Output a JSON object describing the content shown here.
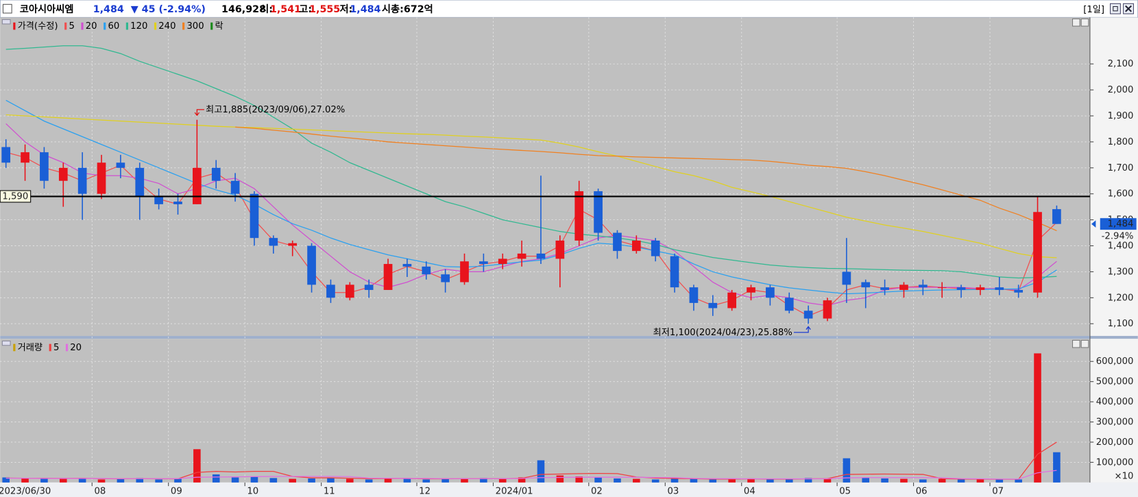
{
  "header": {
    "name": "코아시아씨엠",
    "price": "1,484",
    "change": "▼ 45 (-2.94%)",
    "volume": "146,928",
    "open_label": "시:",
    "open_value": "1,541",
    "high_label": "고:",
    "high_value": "1,555",
    "low_label": "저:",
    "low_value": "1,484",
    "market_cap": "시총:672억",
    "period": "[1일]"
  },
  "chart_data": [
    {
      "type": "candlestick",
      "name": "가격(수정)",
      "up_color": "#e8141c",
      "down_color": "#1a5fd6",
      "categories": [
        "2023/06/30",
        null,
        null,
        null,
        null,
        "08",
        null,
        null,
        null,
        "09",
        null,
        null,
        null,
        "10",
        null,
        null,
        null,
        "11",
        null,
        null,
        null,
        null,
        "12",
        null,
        null,
        null,
        "2024/01",
        null,
        null,
        null,
        null,
        "02",
        null,
        null,
        null,
        "03",
        null,
        null,
        null,
        "04",
        null,
        null,
        null,
        null,
        "05",
        null,
        null,
        null,
        "06",
        null,
        null,
        null,
        "07",
        null,
        null,
        null
      ],
      "open": [
        1780,
        1720,
        1760,
        1650,
        1700,
        1600,
        1720,
        1700,
        1590,
        1570,
        1560,
        1700,
        1650,
        1600,
        1430,
        1400,
        1400,
        1250,
        1200,
        1250,
        1230,
        1330,
        1320,
        1290,
        1260,
        1340,
        1330,
        1350,
        1370,
        1350,
        1420,
        1610,
        1450,
        1380,
        1420,
        1360,
        1240,
        1180,
        1160,
        1220,
        1240,
        1200,
        1150,
        1120,
        1300,
        1260,
        1240,
        1230,
        1250,
        1240,
        1240,
        1230,
        1240,
        1230,
        1220,
        1541
      ],
      "high": [
        1810,
        1790,
        1780,
        1720,
        1760,
        1750,
        1750,
        1720,
        1620,
        1600,
        1885,
        1730,
        1680,
        1610,
        1440,
        1420,
        1410,
        1270,
        1260,
        1270,
        1350,
        1350,
        1340,
        1310,
        1370,
        1370,
        1370,
        1420,
        1670,
        1440,
        1650,
        1620,
        1460,
        1440,
        1430,
        1370,
        1250,
        1210,
        1230,
        1250,
        1250,
        1220,
        1170,
        1200,
        1430,
        1270,
        1270,
        1260,
        1270,
        1260,
        1250,
        1250,
        1280,
        1250,
        1590,
        1555
      ],
      "low": [
        1700,
        1650,
        1620,
        1550,
        1500,
        1580,
        1660,
        1500,
        1540,
        1520,
        1560,
        1620,
        1570,
        1400,
        1370,
        1360,
        1220,
        1180,
        1190,
        1200,
        1230,
        1280,
        1270,
        1220,
        1250,
        1300,
        1310,
        1320,
        1330,
        1240,
        1400,
        1420,
        1350,
        1370,
        1340,
        1220,
        1150,
        1130,
        1150,
        1190,
        1170,
        1140,
        1100,
        1110,
        1180,
        1160,
        1210,
        1200,
        1210,
        1200,
        1200,
        1210,
        1210,
        1200,
        1200,
        1484
      ],
      "close": [
        1720,
        1760,
        1650,
        1700,
        1600,
        1720,
        1700,
        1590,
        1560,
        1560,
        1700,
        1650,
        1600,
        1430,
        1400,
        1410,
        1250,
        1200,
        1250,
        1230,
        1330,
        1320,
        1290,
        1260,
        1340,
        1330,
        1350,
        1370,
        1350,
        1420,
        1610,
        1450,
        1380,
        1420,
        1360,
        1240,
        1180,
        1160,
        1220,
        1240,
        1200,
        1150,
        1120,
        1190,
        1250,
        1240,
        1230,
        1250,
        1240,
        1240,
        1230,
        1240,
        1230,
        1220,
        1530,
        1484
      ],
      "series": [
        {
          "name": "5",
          "color": "#f05050",
          "values": [
            1760,
            1740,
            1700,
            1680,
            1650,
            1680,
            1710,
            1640,
            1580,
            1560,
            1660,
            1680,
            1630,
            1500,
            1420,
            1400,
            1300,
            1220,
            1220,
            1240,
            1290,
            1320,
            1300,
            1270,
            1300,
            1330,
            1340,
            1360,
            1360,
            1400,
            1540,
            1500,
            1420,
            1400,
            1380,
            1280,
            1200,
            1170,
            1190,
            1230,
            1220,
            1170,
            1130,
            1160,
            1230,
            1250,
            1235,
            1240,
            1245,
            1240,
            1235,
            1235,
            1235,
            1225,
            1420,
            1490
          ]
        },
        {
          "name": "20",
          "color": "#d050d0",
          "values": [
            1870,
            1800,
            1750,
            1720,
            1680,
            1670,
            1670,
            1660,
            1640,
            1600,
            1620,
            1650,
            1660,
            1620,
            1550,
            1480,
            1420,
            1360,
            1300,
            1260,
            1240,
            1260,
            1290,
            1310,
            1300,
            1300,
            1320,
            1340,
            1350,
            1370,
            1400,
            1430,
            1440,
            1430,
            1420,
            1380,
            1320,
            1260,
            1220,
            1200,
            1210,
            1200,
            1180,
            1170,
            1190,
            1200,
            1230,
            1240,
            1240,
            1240,
            1240,
            1235,
            1235,
            1230,
            1280,
            1340
          ]
        },
        {
          "name": "60",
          "color": "#2aa0f0",
          "values": [
            1960,
            1920,
            1880,
            1850,
            1820,
            1790,
            1760,
            1730,
            1700,
            1670,
            1640,
            1615,
            1595,
            1560,
            1520,
            1485,
            1460,
            1430,
            1405,
            1385,
            1365,
            1350,
            1335,
            1320,
            1318,
            1322,
            1330,
            1338,
            1345,
            1365,
            1390,
            1410,
            1405,
            1395,
            1380,
            1365,
            1330,
            1300,
            1280,
            1265,
            1250,
            1238,
            1230,
            1222,
            1215,
            1218,
            1222,
            1226,
            1228,
            1230,
            1231,
            1232,
            1233,
            1234,
            1260,
            1307
          ]
        },
        {
          "name": "120",
          "color": "#30b890",
          "values": [
            2156,
            2160,
            2165,
            2170,
            2170,
            2160,
            2140,
            2110,
            2085,
            2060,
            2035,
            2005,
            1975,
            1940,
            1895,
            1850,
            1795,
            1760,
            1720,
            1690,
            1660,
            1630,
            1600,
            1570,
            1550,
            1525,
            1500,
            1485,
            1470,
            1455,
            1445,
            1438,
            1430,
            1420,
            1405,
            1385,
            1370,
            1355,
            1345,
            1335,
            1326,
            1320,
            1316,
            1313,
            1312,
            1310,
            1308,
            1306,
            1305,
            1304,
            1300,
            1290,
            1280,
            1276,
            1278,
            1282
          ]
        },
        {
          "name": "240",
          "color": "#e0d020",
          "values": [
            1904,
            1900,
            1896,
            1892,
            1888,
            1884,
            1880,
            1876,
            1872,
            1868,
            1864,
            1860,
            1857,
            1855,
            1852,
            1849,
            1846,
            1843,
            1840,
            1837,
            1834,
            1831,
            1829,
            1826,
            1822,
            1819,
            1815,
            1811,
            1807,
            1795,
            1780,
            1762,
            1745,
            1725,
            1705,
            1685,
            1670,
            1650,
            1625,
            1608,
            1590,
            1570,
            1550,
            1530,
            1510,
            1495,
            1480,
            1468,
            1455,
            1440,
            1425,
            1410,
            1390,
            1370,
            1358,
            1354
          ]
        },
        {
          "name": "300",
          "color": "#f08020",
          "values": [
            null,
            null,
            null,
            null,
            null,
            null,
            null,
            null,
            null,
            null,
            null,
            null,
            1857,
            1852,
            1845,
            1838,
            1830,
            1822,
            1815,
            1808,
            1800,
            1795,
            1790,
            1785,
            1780,
            1775,
            1771,
            1767,
            1763,
            1758,
            1752,
            1747,
            1745,
            1742,
            1740,
            1738,
            1736,
            1734,
            1732,
            1730,
            1725,
            1718,
            1710,
            1705,
            1698,
            1685,
            1670,
            1652,
            1635,
            1615,
            1595,
            1575,
            1545,
            1520,
            1490,
            1458
          ]
        }
      ],
      "legend_extra": {
        "name": "락",
        "color": "#1a8a1a"
      },
      "ylim": [
        1053,
        2279
      ],
      "yticks": [
        {
          "value": 1100,
          "label": "1,100"
        },
        {
          "value": 1200,
          "label": "1,200"
        },
        {
          "value": 1300,
          "label": "1,300"
        },
        {
          "value": 1400,
          "label": "1,400"
        },
        {
          "value": 1500,
          "label": "1,500"
        },
        {
          "value": 1600,
          "label": "1,600"
        },
        {
          "value": 1700,
          "label": "1,700"
        },
        {
          "value": 1800,
          "label": "1,800"
        },
        {
          "value": 1900,
          "label": "1,900"
        },
        {
          "value": 2000,
          "label": "2,000"
        },
        {
          "value": 2100,
          "label": "2,100"
        }
      ],
      "grid": true,
      "hline": {
        "value": 1590,
        "label": "1,590"
      },
      "high_annotation": "최고1,885(2023/09/06),27.02%",
      "low_annotation": "최저1,100(2024/04/23),25.88%",
      "last": {
        "value": 1484,
        "label": "1,484"
      },
      "change_label": "-2.94%"
    },
    {
      "type": "volume",
      "name": "거래량",
      "name_color": "#c8a000",
      "values": [
        25000,
        20000,
        22000,
        18000,
        20000,
        15000,
        18000,
        22000,
        15000,
        20000,
        165000,
        40000,
        25000,
        30000,
        22000,
        18000,
        20000,
        25000,
        18000,
        15000,
        22000,
        18000,
        15000,
        20000,
        18000,
        22000,
        20000,
        25000,
        110000,
        35000,
        30000,
        25000,
        20000,
        18000,
        15000,
        20000,
        18000,
        15000,
        18000,
        20000,
        15000,
        18000,
        22000,
        20000,
        120000,
        25000,
        20000,
        18000,
        15000,
        18000,
        15000,
        18000,
        15000,
        15000,
        640000,
        150000
      ],
      "series": [
        {
          "name": "5",
          "color": "#f04040",
          "values": [
            22000,
            21000,
            21000,
            20000,
            21000,
            19000,
            18000,
            19000,
            18000,
            18000,
            50000,
            55000,
            52000,
            55000,
            55000,
            30000,
            23000,
            23000,
            21000,
            19000,
            20000,
            20000,
            18000,
            18000,
            19000,
            19000,
            19000,
            21000,
            40000,
            42000,
            44000,
            45000,
            44000,
            27000,
            22000,
            20000,
            19000,
            17000,
            17000,
            18000,
            17000,
            17000,
            18000,
            19000,
            40000,
            41000,
            42000,
            41000,
            40000,
            19000,
            17000,
            17000,
            16000,
            16000,
            140000,
            200000
          ]
        },
        {
          "name": "20",
          "color": "#e070e0",
          "values": [
            21000,
            21000,
            20000,
            20000,
            20000,
            20000,
            19000,
            19000,
            19000,
            19000,
            26000,
            27000,
            28000,
            29000,
            30000,
            30000,
            30000,
            30000,
            29000,
            22000,
            21000,
            20000,
            20000,
            19000,
            19000,
            19000,
            19000,
            20000,
            24000,
            25000,
            26000,
            26000,
            26000,
            26000,
            25000,
            24000,
            20000,
            19000,
            19000,
            18000,
            18000,
            18000,
            18000,
            18000,
            23000,
            24000,
            24000,
            24000,
            24000,
            23000,
            19000,
            18000,
            17000,
            17000,
            48000,
            60000
          ]
        }
      ],
      "ylim": [
        0,
        712000
      ],
      "yticks": [
        {
          "value": 100000,
          "label": "100,000"
        },
        {
          "value": 200000,
          "label": "200,000"
        },
        {
          "value": 300000,
          "label": "300,000"
        },
        {
          "value": 400000,
          "label": "400,000"
        },
        {
          "value": 500000,
          "label": "500,000"
        },
        {
          "value": 600000,
          "label": "600,000"
        }
      ],
      "grid": true,
      "unit_label": "×10"
    }
  ]
}
